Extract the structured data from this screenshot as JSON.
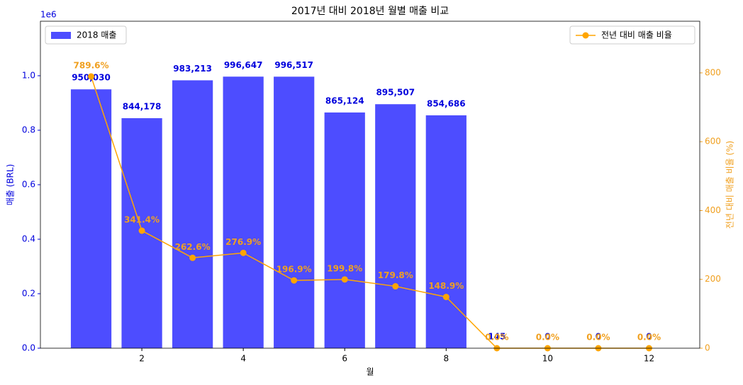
{
  "chart_data": {
    "type": "bar",
    "title": "2017년 대비 2018년 월별 매출 비교",
    "x_label": "월",
    "y_label": "매출 (BRL)",
    "y2_label": "전년 대비 매출 비율 (%)",
    "y_offset_label": "1e6",
    "x": [
      1,
      2,
      3,
      4,
      5,
      6,
      7,
      8,
      9,
      10,
      11,
      12
    ],
    "xlim": [
      0,
      13
    ],
    "xticks": [
      2,
      4,
      6,
      8,
      10,
      12
    ],
    "ylim": [
      0,
      1200000
    ],
    "yticks": [
      {
        "value": 0,
        "label": "0.0"
      },
      {
        "value": 200000,
        "label": "0.2"
      },
      {
        "value": 400000,
        "label": "0.4"
      },
      {
        "value": 600000,
        "label": "0.6"
      },
      {
        "value": 800000,
        "label": "0.8"
      },
      {
        "value": 1000000,
        "label": "1.0"
      }
    ],
    "y2lim": [
      0,
      950
    ],
    "y2ticks": [
      0,
      200,
      400,
      600,
      800
    ],
    "series": [
      {
        "name": "2018 매출",
        "type": "bar",
        "color": "#4d4dff",
        "label_color": "#0000dd",
        "values": [
          950030,
          844178,
          983213,
          996647,
          996517,
          865124,
          895507,
          854686,
          145,
          0,
          0,
          0
        ],
        "value_labels": [
          "950,030",
          "844,178",
          "983,213",
          "996,647",
          "996,517",
          "865,124",
          "895,507",
          "854,686",
          "145",
          "0",
          "0",
          "0"
        ]
      },
      {
        "name": "전년 대비 매출 비율",
        "type": "line",
        "axis": "y2",
        "color": "#ffa500",
        "label_color": "#f0a020",
        "values": [
          789.6,
          341.4,
          262.6,
          276.9,
          196.9,
          199.8,
          179.8,
          148.9,
          0.0,
          0.0,
          0.0,
          0.0
        ],
        "value_labels": [
          "789.6%",
          "341.4%",
          "262.6%",
          "276.9%",
          "196.9%",
          "199.8%",
          "179.8%",
          "148.9%",
          "0.0%",
          "0.0%",
          "0.0%",
          "0.0%"
        ]
      }
    ],
    "legend": [
      "upper left",
      "upper right"
    ]
  }
}
